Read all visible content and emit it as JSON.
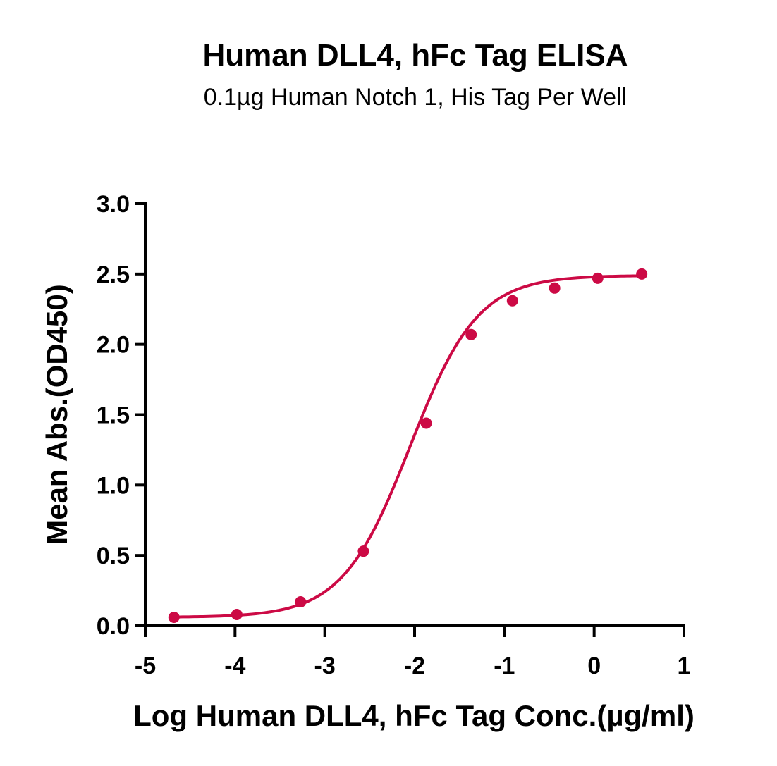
{
  "chart_data": {
    "type": "scatter",
    "title": "Human DLL4, hFc Tag ELISA",
    "subtitle": "0.1µg Human Notch 1, His Tag Per Well",
    "xlabel": "Log Human DLL4, hFc Tag Conc.(µg/ml)",
    "ylabel": "Mean Abs.(OD450)",
    "xlim": [
      -5,
      1
    ],
    "ylim": [
      0,
      3
    ],
    "xticks": [
      -5,
      -4,
      -3,
      -2,
      -1,
      0,
      1
    ],
    "yticks": [
      0,
      0.5,
      1,
      1.5,
      2,
      2.5,
      3
    ],
    "xtick_labels": [
      "-5",
      "-4",
      "-3",
      "-2",
      "-1",
      "0",
      "1"
    ],
    "ytick_labels": [
      "0.0",
      "0.5",
      "1.0",
      "1.5",
      "2.0",
      "2.5",
      "3.0"
    ],
    "grid": false,
    "color": "#cc0a45",
    "series": [
      {
        "x": [
          -4.68,
          -3.98,
          -3.27,
          -2.57,
          -1.87,
          -1.37,
          -0.91,
          -0.44,
          0.04,
          0.53
        ],
        "y": [
          0.06,
          0.08,
          0.17,
          0.53,
          1.44,
          2.07,
          2.31,
          2.4,
          2.47,
          2.5
        ]
      }
    ],
    "fit_curve": {
      "model": "4PL",
      "bottom": 0.06,
      "top": 2.49,
      "log_ec50": -2.05,
      "hill_slope": 1.15
    }
  }
}
